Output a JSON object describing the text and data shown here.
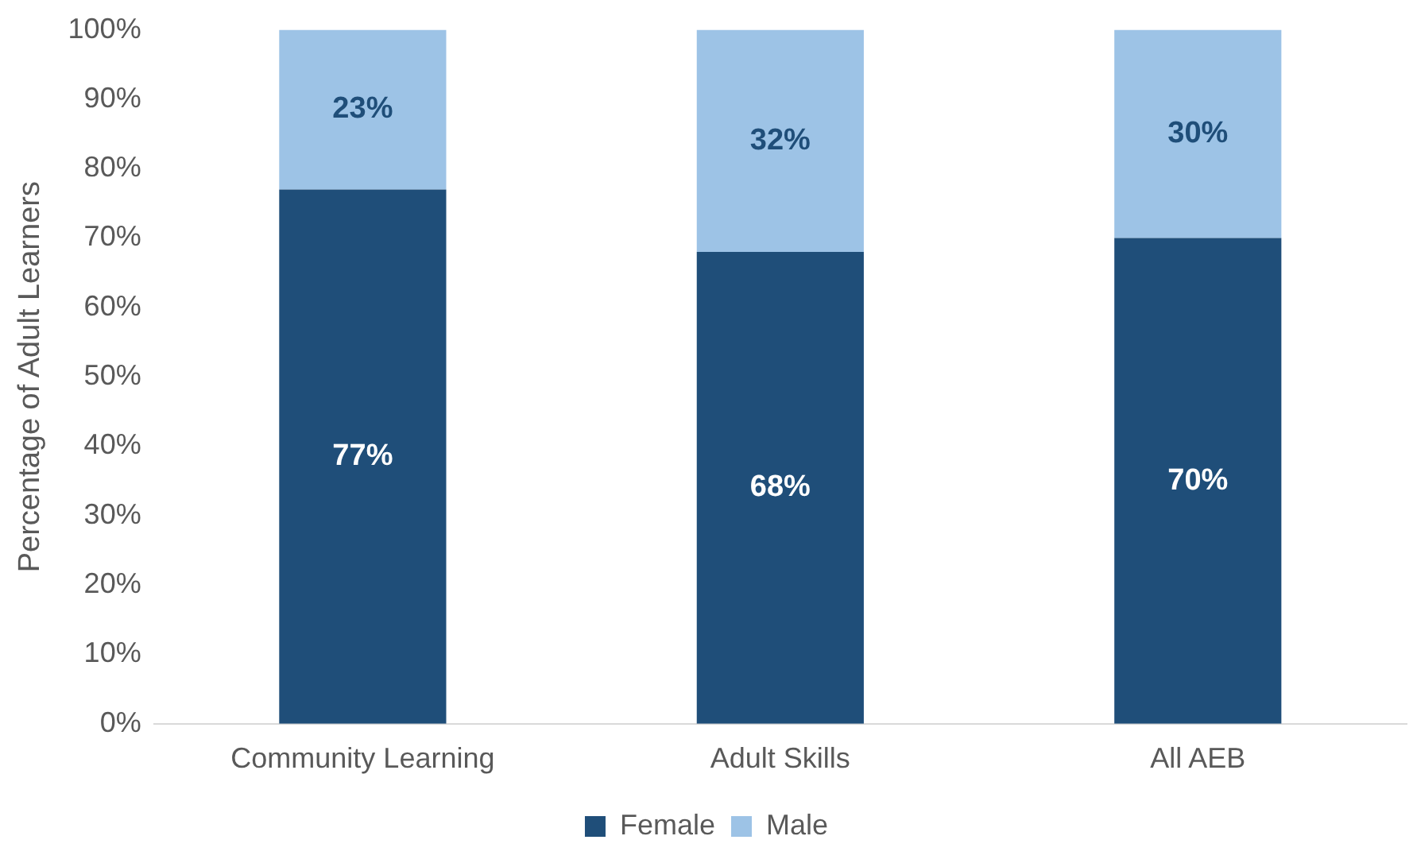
{
  "chart_data": {
    "type": "bar",
    "stacked": true,
    "ylabel": "Percentage of Adult Learners",
    "categories": [
      "Community Learning",
      "Adult Skills",
      "All AEB"
    ],
    "series": [
      {
        "name": "Female",
        "color": "#1f4e79",
        "values": [
          77,
          68,
          70
        ],
        "value_labels": [
          "77%",
          "68%",
          "70%"
        ]
      },
      {
        "name": "Male",
        "color": "#9dc3e6",
        "values": [
          23,
          32,
          30
        ],
        "value_labels": [
          "23%",
          "32%",
          "30%"
        ]
      }
    ],
    "ylim": [
      0,
      100
    ],
    "yticks": [
      {
        "value": 0,
        "label": "0%"
      },
      {
        "value": 10,
        "label": "10%"
      },
      {
        "value": 20,
        "label": "20%"
      },
      {
        "value": 30,
        "label": "30%"
      },
      {
        "value": 40,
        "label": "40%"
      },
      {
        "value": 50,
        "label": "50%"
      },
      {
        "value": 60,
        "label": "60%"
      },
      {
        "value": 70,
        "label": "70%"
      },
      {
        "value": 80,
        "label": "80%"
      },
      {
        "value": 90,
        "label": "90%"
      },
      {
        "value": 100,
        "label": "100%"
      }
    ],
    "grid": false,
    "legend": "bottom"
  }
}
